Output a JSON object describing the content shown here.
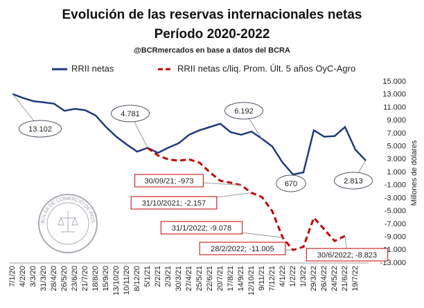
{
  "chart_data": {
    "type": "line",
    "title": "Evolución de las reservas internacionales netas",
    "subtitle": "Período 2020-2022",
    "source": "@BCRmercados en base a datos del BCRA",
    "y_label": "Millones de dólares",
    "logo_text": "BOLSA DE COMERCIO DE ROSARIO",
    "categories": [
      "7/1/20",
      "4/2/20",
      "3/3/20",
      "31/3/20",
      "28/4/20",
      "26/5/20",
      "23/6/20",
      "21/7/20",
      "18/8/20",
      "15/9/20",
      "13/10/20",
      "10/11/20",
      "8/12/20",
      "5/1/21",
      "2/2/21",
      "2/3/21",
      "30/3/21",
      "27/4/21",
      "25/5/21",
      "22/6/21",
      "20/7/21",
      "17/8/21",
      "14/9/21",
      "12/10/21",
      "9/11/21",
      "7/12/21",
      "4/1/22",
      "1/2/22",
      "1/3/22",
      "29/3/22",
      "26/4/22",
      "24/5/22",
      "21/6/22",
      "19/7/22",
      null
    ],
    "series": [
      {
        "name": "RRII netas",
        "color": "#1f3a7a",
        "dash": false,
        "values": [
          13102,
          12500,
          12000,
          11800,
          11600,
          10500,
          10800,
          10600,
          9800,
          8000,
          6500,
          5300,
          4200,
          4781,
          4000,
          4800,
          5500,
          6800,
          7500,
          8000,
          8500,
          7200,
          6800,
          7300,
          6192,
          5000,
          2500,
          670,
          1000,
          7500,
          6500,
          6600,
          8000,
          4500,
          2813
        ]
      },
      {
        "name": "RRII netas c/liq. Prom. Últ. 5 años OyC-Agro",
        "color": "#c00000",
        "dash": true,
        "values": [
          null,
          null,
          null,
          null,
          null,
          null,
          null,
          null,
          null,
          null,
          null,
          null,
          null,
          4781,
          3600,
          3000,
          2800,
          3000,
          2500,
          1000,
          -300,
          -600,
          -973,
          -2157,
          -2800,
          -5000,
          -9078,
          -11005,
          -10500,
          -6000,
          -7800,
          -9600,
          -8823,
          null,
          null
        ]
      }
    ],
    "ylim": [
      -13000,
      15000
    ],
    "yticks": [
      {
        "value": 15000,
        "label": "15.000"
      },
      {
        "value": 13000,
        "label": "13.000"
      },
      {
        "value": 11000,
        "label": "11.000"
      },
      {
        "value": 9000,
        "label": "9.000"
      },
      {
        "value": 7000,
        "label": "7.000"
      },
      {
        "value": 5000,
        "label": "5.000"
      },
      {
        "value": 3000,
        "label": "3.000"
      },
      {
        "value": 1000,
        "label": "1.000"
      },
      {
        "value": -1000,
        "label": "-1.000"
      },
      {
        "value": -3000,
        "label": "-3.000"
      },
      {
        "value": -5000,
        "label": "-5.000"
      },
      {
        "value": -7000,
        "label": "-7.000"
      },
      {
        "value": -9000,
        "label": "-9.000"
      },
      {
        "value": -11000,
        "label": "-11.000"
      },
      {
        "value": -13000,
        "label": "-13.000"
      }
    ],
    "grid": false,
    "annotations": [
      {
        "text": "13.102",
        "series": 0,
        "index": 0
      },
      {
        "text": "4.781",
        "series": 0,
        "index": 13
      },
      {
        "text": "6.192",
        "series": 0,
        "index": 24
      },
      {
        "text": "670",
        "series": 0,
        "index": 27
      },
      {
        "text": "2.813",
        "series": 0,
        "index": 34
      },
      {
        "text": "30/09/21; -973",
        "series": 1,
        "index": 22
      },
      {
        "text": "31/10/2021; -2.157",
        "series": 1,
        "index": 23
      },
      {
        "text": "31/1/2022; -9.078",
        "series": 1,
        "index": 26
      },
      {
        "text": "28/2/2022; -11.005",
        "series": 1,
        "index": 27
      },
      {
        "text": "30/6/2022; -8.823",
        "series": 1,
        "index": 32
      }
    ]
  }
}
